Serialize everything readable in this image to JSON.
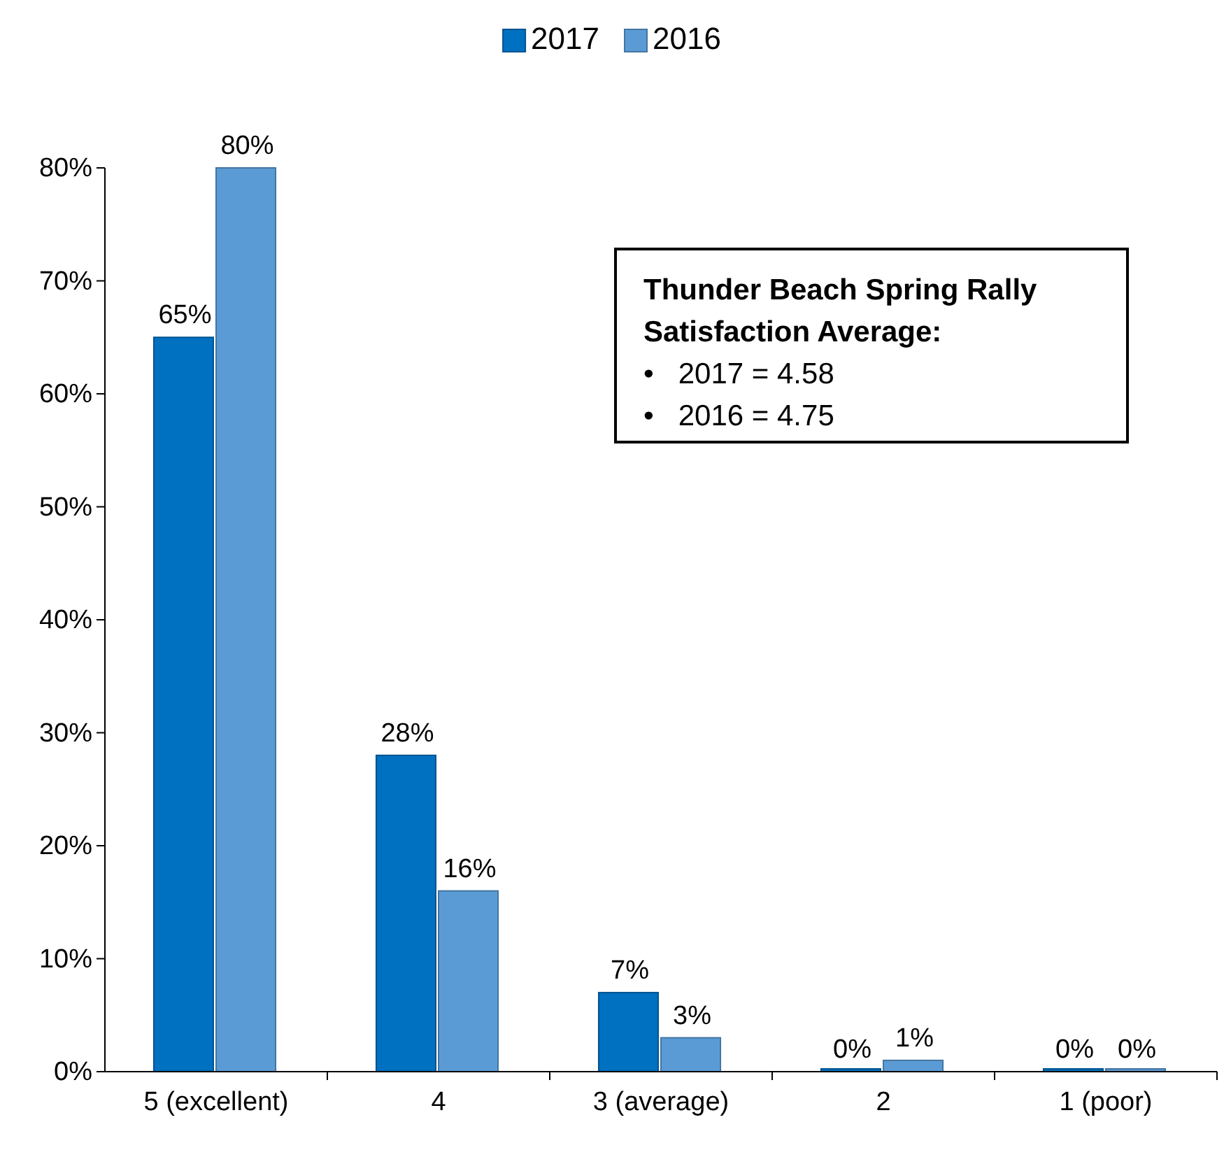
{
  "chart_data": {
    "type": "bar",
    "categories": [
      "5 (excellent)",
      "4",
      "3 (average)",
      "2",
      "1 (poor)"
    ],
    "series": [
      {
        "name": "2017",
        "color": "#0070c0",
        "values": [
          65,
          28,
          7,
          0,
          0
        ],
        "value_labels": [
          "65%",
          "28%",
          "7%",
          "0%",
          "0%"
        ]
      },
      {
        "name": "2016",
        "color": "#5b9bd5",
        "values": [
          80,
          16,
          3,
          1,
          0
        ],
        "value_labels": [
          "80%",
          "16%",
          "3%",
          "1%",
          "0%"
        ]
      }
    ],
    "ylim": [
      0,
      80
    ],
    "yticks": [
      {
        "value": 0,
        "label": "0%"
      },
      {
        "value": 10,
        "label": "10%"
      },
      {
        "value": 20,
        "label": "20%"
      },
      {
        "value": 30,
        "label": "30%"
      },
      {
        "value": 40,
        "label": "40%"
      },
      {
        "value": 50,
        "label": "50%"
      },
      {
        "value": 60,
        "label": "60%"
      },
      {
        "value": 70,
        "label": "70%"
      },
      {
        "value": 80,
        "label": "80%"
      }
    ],
    "legend": "top",
    "grid": false,
    "annotations": [
      "Thunder Beach Spring Rally Satisfaction Average:",
      "•   2017 = 4.58",
      "•   2016 = 4.75"
    ]
  }
}
